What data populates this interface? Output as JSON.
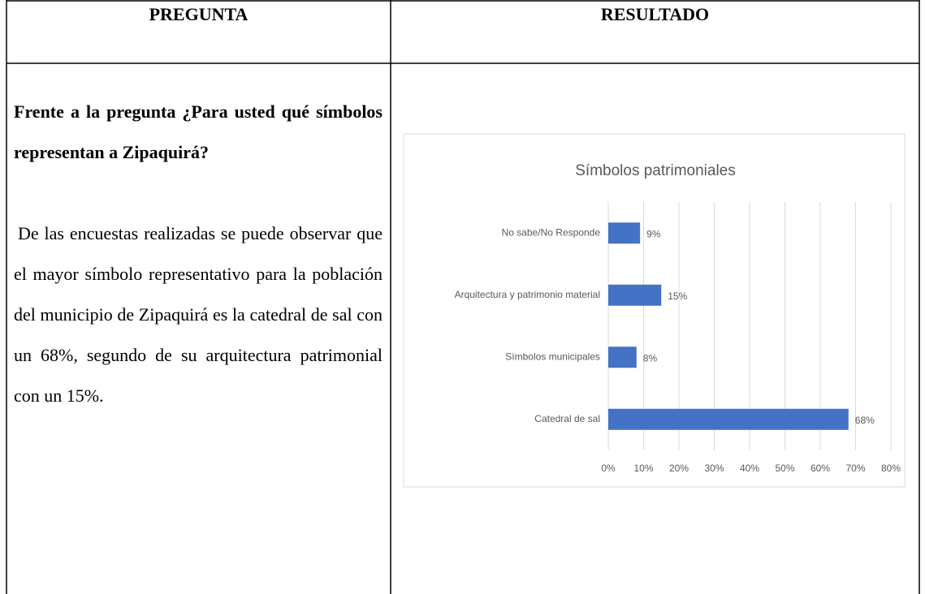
{
  "table": {
    "headers": [
      "PREGUNTA",
      "RESULTADO"
    ],
    "question": "Frente a la pregunta ¿Para usted qué símbolos representan a Zipaquirá?",
    "answer": "De las encuestas realizadas se puede observar que el mayor símbolo representativo para la población del municipio de Zipaquirá es la catedral de sal con un 68%, segundo de su arquitectura patrimonial con un 15%."
  },
  "chart_data": {
    "type": "bar",
    "orientation": "horizontal",
    "title": "Símbolos patrimoniales",
    "categories": [
      "No sabe/No Responde",
      "Arquitectura y patrimonio material",
      "Símbolos municipales",
      "Catedral de sal"
    ],
    "values": [
      9,
      15,
      8,
      68
    ],
    "value_labels": [
      "9%",
      "15%",
      "8%",
      "68%"
    ],
    "color": "#4472c4",
    "xlim": [
      0,
      80
    ],
    "xticks": [
      {
        "value": 0,
        "label": "0%"
      },
      {
        "value": 10,
        "label": "10%"
      },
      {
        "value": 20,
        "label": "20%"
      },
      {
        "value": 30,
        "label": "30%"
      },
      {
        "value": 40,
        "label": "40%"
      },
      {
        "value": 50,
        "label": "50%"
      },
      {
        "value": 60,
        "label": "60%"
      },
      {
        "value": 70,
        "label": "70%"
      },
      {
        "value": 80,
        "label": "80%"
      }
    ],
    "grid": true
  }
}
